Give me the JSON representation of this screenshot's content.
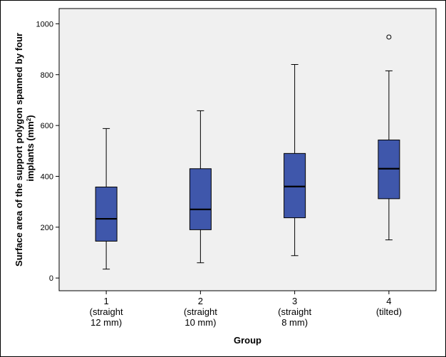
{
  "chart_data": {
    "type": "boxplot",
    "xlabel": "Group",
    "ylabel_prefix": "Surface area of the support polygon spanned by four",
    "ylabel_line2": "implants (mm",
    "ylabel_sup": "2",
    "ylabel_suffix": ")",
    "ylim": [
      -50,
      1060
    ],
    "yticks": [
      0,
      200,
      400,
      600,
      800,
      1000
    ],
    "grid": false,
    "box_color": "#3f57ab",
    "plot_bg": "#f0f0f0",
    "groups": [
      {
        "label_lines": [
          "1",
          "(straight",
          "12 mm)"
        ],
        "min": 35,
        "q1": 145,
        "median": 233,
        "q3": 358,
        "max": 588,
        "outliers": []
      },
      {
        "label_lines": [
          "2",
          "(straight",
          "10 mm)"
        ],
        "min": 60,
        "q1": 190,
        "median": 270,
        "q3": 430,
        "max": 658,
        "outliers": []
      },
      {
        "label_lines": [
          "3",
          "(straight",
          "8 mm)"
        ],
        "min": 88,
        "q1": 237,
        "median": 360,
        "q3": 490,
        "max": 840,
        "outliers": []
      },
      {
        "label_lines": [
          "4",
          "(tilted)"
        ],
        "min": 150,
        "q1": 312,
        "median": 430,
        "q3": 543,
        "max": 815,
        "outliers": [
          948
        ]
      }
    ]
  }
}
